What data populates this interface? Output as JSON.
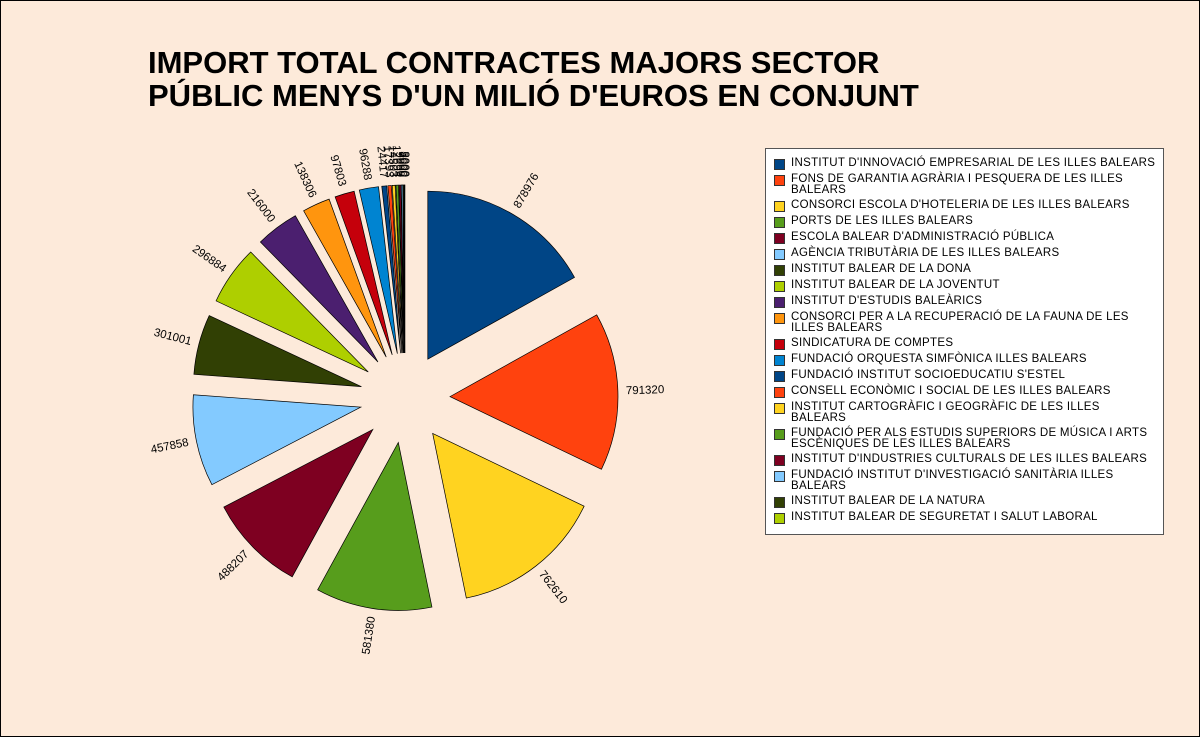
{
  "chart_data": {
    "type": "pie",
    "title": "IMPORT TOTAL CONTRACTES MAJORS SECTOR PÚBLIC MENYS D'UN MILIÓ D'EUROS EN CONJUNT",
    "categories": [
      "INSTITUT D'INNOVACIÓ EMPRESARIAL DE LES ILLES BALEARS",
      "FONS DE GARANTIA AGRÀRIA I PESQUERA DE LES ILLES BALEARS",
      "CONSORCI ESCOLA D'HOTELERIA DE LES ILLES BALEARS",
      "PORTS DE LES ILLES BALEARS",
      "ESCOLA BALEAR D'ADMINISTRACIÓ PÚBLICA",
      "AGÈNCIA TRIBUTÀRIA DE LES ILLES BALEARS",
      "INSTITUT BALEAR DE LA DONA",
      "INSTITUT BALEAR DE LA JOVENTUT",
      "INSTITUT D'ESTUDIS BALEÀRICS",
      "CONSORCI PER A LA RECUPERACIÓ DE LA FAUNA DE LES ILLES BALEARS",
      "SINDICATURA DE COMPTES",
      "FUNDACIÓ ORQUESTA SIMFÒNICA ILLES BALEARS",
      "FUNDACIÓ INSTITUT SOCIOEDUCATIU S'ESTEL",
      "CONSELL ECONÒMIC I SOCIAL DE LES ILLES BALEARS",
      "INSTITUT CARTOGRÀFIC I GEOGRÀFIC DE LES ILLES BALEARS",
      "FUNDACIÓ PER ALS ESTUDIS SUPERIORS DE MÚSICA I ARTS ESCÈNIQUES DE LES ILLES BALEARS",
      "INSTITUT D'INDUSTRIES CULTURALS  DE LES ILLES BALEARS",
      "FUNDACIÓ INSTITUT D'INVESTIGACIÓ SANITÀRIA ILLES BALEARS",
      "INSTITUT BALEAR DE LA NATURA",
      "INSTITUT BALEAR DE SEGURETAT I SALUT LABORAL"
    ],
    "values": [
      878976,
      791320,
      762610,
      581380,
      488207,
      457858,
      301001,
      296884,
      216000,
      138306,
      97803,
      96288,
      24417,
      17393,
      14503,
      12694,
      9000,
      7000,
      5000,
      3000
    ],
    "colors": [
      "#004586",
      "#ff420e",
      "#ffd320",
      "#579d1c",
      "#7e0021",
      "#83caff",
      "#314004",
      "#aecf00",
      "#4b1f6f",
      "#ff950e",
      "#c5000b",
      "#0084d1",
      "#004586",
      "#ff420e",
      "#ffd320",
      "#579d1c",
      "#7e0021",
      "#83caff",
      "#314004",
      "#aecf00"
    ],
    "legend": "right"
  }
}
